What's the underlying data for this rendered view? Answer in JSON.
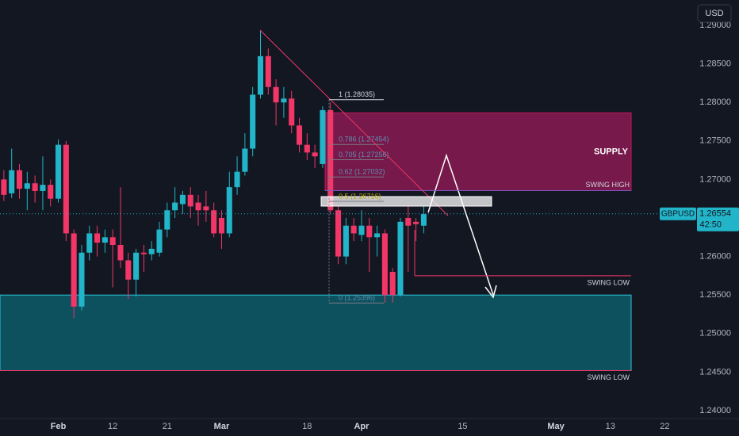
{
  "chart_data": {
    "type": "candlestick",
    "symbol": "GBPUSD",
    "currency": "USD",
    "last_price": {
      "value": 1.26554,
      "label": "1.26554"
    },
    "countdown": "42:50",
    "up_color": "#22b5c9",
    "down_color": "#f23668",
    "open": [
      1.27,
      1.2682,
      1.2712,
      1.2688,
      1.2695,
      1.2685,
      1.2693,
      1.2675,
      1.2745,
      1.263,
      1.2535,
      1.2605,
      1.263,
      1.2618,
      1.2625,
      1.2615,
      1.2595,
      1.257,
      1.2605,
      1.2603,
      1.2605,
      1.2635,
      1.266,
      1.2668,
      1.268,
      1.267,
      1.2665,
      1.266,
      1.265,
      1.263,
      1.269,
      1.271,
      1.274,
      1.281,
      1.286,
      1.282,
      1.28,
      1.2805,
      1.277,
      1.2745,
      1.2735,
      1.272,
      1.279,
      1.266,
      1.26,
      1.264,
      1.2628,
      1.264,
      1.2625,
      1.263,
      1.258,
      1.255,
      1.265,
      1.2645,
      1.264
    ],
    "high": [
      1.2712,
      1.274,
      1.272,
      1.271,
      1.2705,
      1.273,
      1.27,
      1.2752,
      1.275,
      1.2635,
      1.2615,
      1.264,
      1.264,
      1.2635,
      1.2635,
      1.269,
      1.2605,
      1.261,
      1.2615,
      1.262,
      1.2645,
      1.267,
      1.269,
      1.2685,
      1.269,
      1.268,
      1.2685,
      1.267,
      1.266,
      1.271,
      1.273,
      1.276,
      1.282,
      1.2893,
      1.287,
      1.283,
      1.282,
      1.2815,
      1.278,
      1.276,
      1.2745,
      1.2795,
      1.28,
      1.2665,
      1.265,
      1.265,
      1.266,
      1.265,
      1.264,
      1.2635,
      1.2585,
      1.265,
      1.2665,
      1.265,
      1.2665
    ],
    "low": [
      1.2672,
      1.2676,
      1.2675,
      1.266,
      1.267,
      1.266,
      1.2665,
      1.267,
      1.262,
      1.252,
      1.253,
      1.2595,
      1.26,
      1.2605,
      1.256,
      1.2585,
      1.2545,
      1.2548,
      1.258,
      1.2595,
      1.26,
      1.2625,
      1.265,
      1.2655,
      1.265,
      1.264,
      1.2645,
      1.2625,
      1.261,
      1.2625,
      1.268,
      1.2705,
      1.273,
      1.2805,
      1.281,
      1.277,
      1.278,
      1.276,
      1.2735,
      1.2725,
      1.2715,
      1.2715,
      1.2655,
      1.259,
      1.259,
      1.262,
      1.262,
      1.258,
      1.26,
      1.254,
      1.254,
      1.2548,
      1.258,
      1.262,
      1.263
    ],
    "close": [
      1.268,
      1.2712,
      1.2688,
      1.2695,
      1.2685,
      1.2693,
      1.2675,
      1.2745,
      1.263,
      1.2535,
      1.2605,
      1.263,
      1.2618,
      1.2625,
      1.2615,
      1.2595,
      1.257,
      1.2605,
      1.2603,
      1.261,
      1.2635,
      1.266,
      1.267,
      1.268,
      1.2665,
      1.266,
      1.266,
      1.263,
      1.263,
      1.269,
      1.271,
      1.274,
      1.281,
      1.286,
      1.282,
      1.28,
      1.2805,
      1.277,
      1.2745,
      1.2735,
      1.273,
      1.279,
      1.266,
      1.26,
      1.264,
      1.263,
      1.264,
      1.2625,
      1.263,
      1.255,
      1.255,
      1.2645,
      1.264,
      1.2642,
      1.2655
    ],
    "xlim": [
      -0.5,
      87
    ],
    "xticks": [
      {
        "value": 7,
        "label": "Feb"
      },
      {
        "value": 14,
        "label": "12"
      },
      {
        "value": 21,
        "label": "21"
      },
      {
        "value": 28,
        "label": "Mar"
      },
      {
        "value": 39,
        "label": "18"
      },
      {
        "value": 46,
        "label": "Apr"
      },
      {
        "value": 59,
        "label": "15"
      },
      {
        "value": 71,
        "label": "May"
      },
      {
        "value": 78,
        "label": "13"
      },
      {
        "value": 85,
        "label": "22"
      }
    ],
    "ylim": [
      1.23897,
      1.29329
    ],
    "yticks": [
      {
        "value": 1.29,
        "label": "1.29000"
      },
      {
        "value": 1.285,
        "label": "1.28500"
      },
      {
        "value": 1.28,
        "label": "1.28000"
      },
      {
        "value": 1.275,
        "label": "1.27500"
      },
      {
        "value": 1.27,
        "label": "1.27000"
      },
      {
        "value": 1.265,
        "label": "1.26500"
      },
      {
        "value": 1.26,
        "label": "1.26000"
      },
      {
        "value": 1.255,
        "label": "1.25500"
      },
      {
        "value": 1.25,
        "label": "1.25000"
      },
      {
        "value": 1.245,
        "label": "1.24500"
      },
      {
        "value": 1.24,
        "label": "1.24000"
      }
    ],
    "zones": [
      {
        "label": "SUPPLY",
        "top": 1.27865,
        "bottom": 1.26855,
        "color": "#8a1a52"
      },
      {
        "top": 1.255,
        "bottom": 1.2452,
        "color": "#0d5a68"
      }
    ],
    "levels": [
      {
        "label": "SWING HIGH",
        "value": 1.26855
      },
      {
        "label": "SWING LOW",
        "value": 1.2575
      },
      {
        "label": "SWING LOW",
        "value": 1.2452
      }
    ],
    "fib_levels": [
      {
        "value": 1.28035,
        "label": "1 (1.28035)"
      },
      {
        "value": 1.27454,
        "label": "0.786 (1.27454)"
      },
      {
        "value": 1.27256,
        "label": "0.705 (1.27256)"
      },
      {
        "value": 1.27032,
        "label": "0.62 (1.27032)"
      },
      {
        "value": 1.26716,
        "label": "0.5 (1.26716)"
      },
      {
        "value": 1.25396,
        "label": "0 (1.25396)"
      }
    ]
  }
}
